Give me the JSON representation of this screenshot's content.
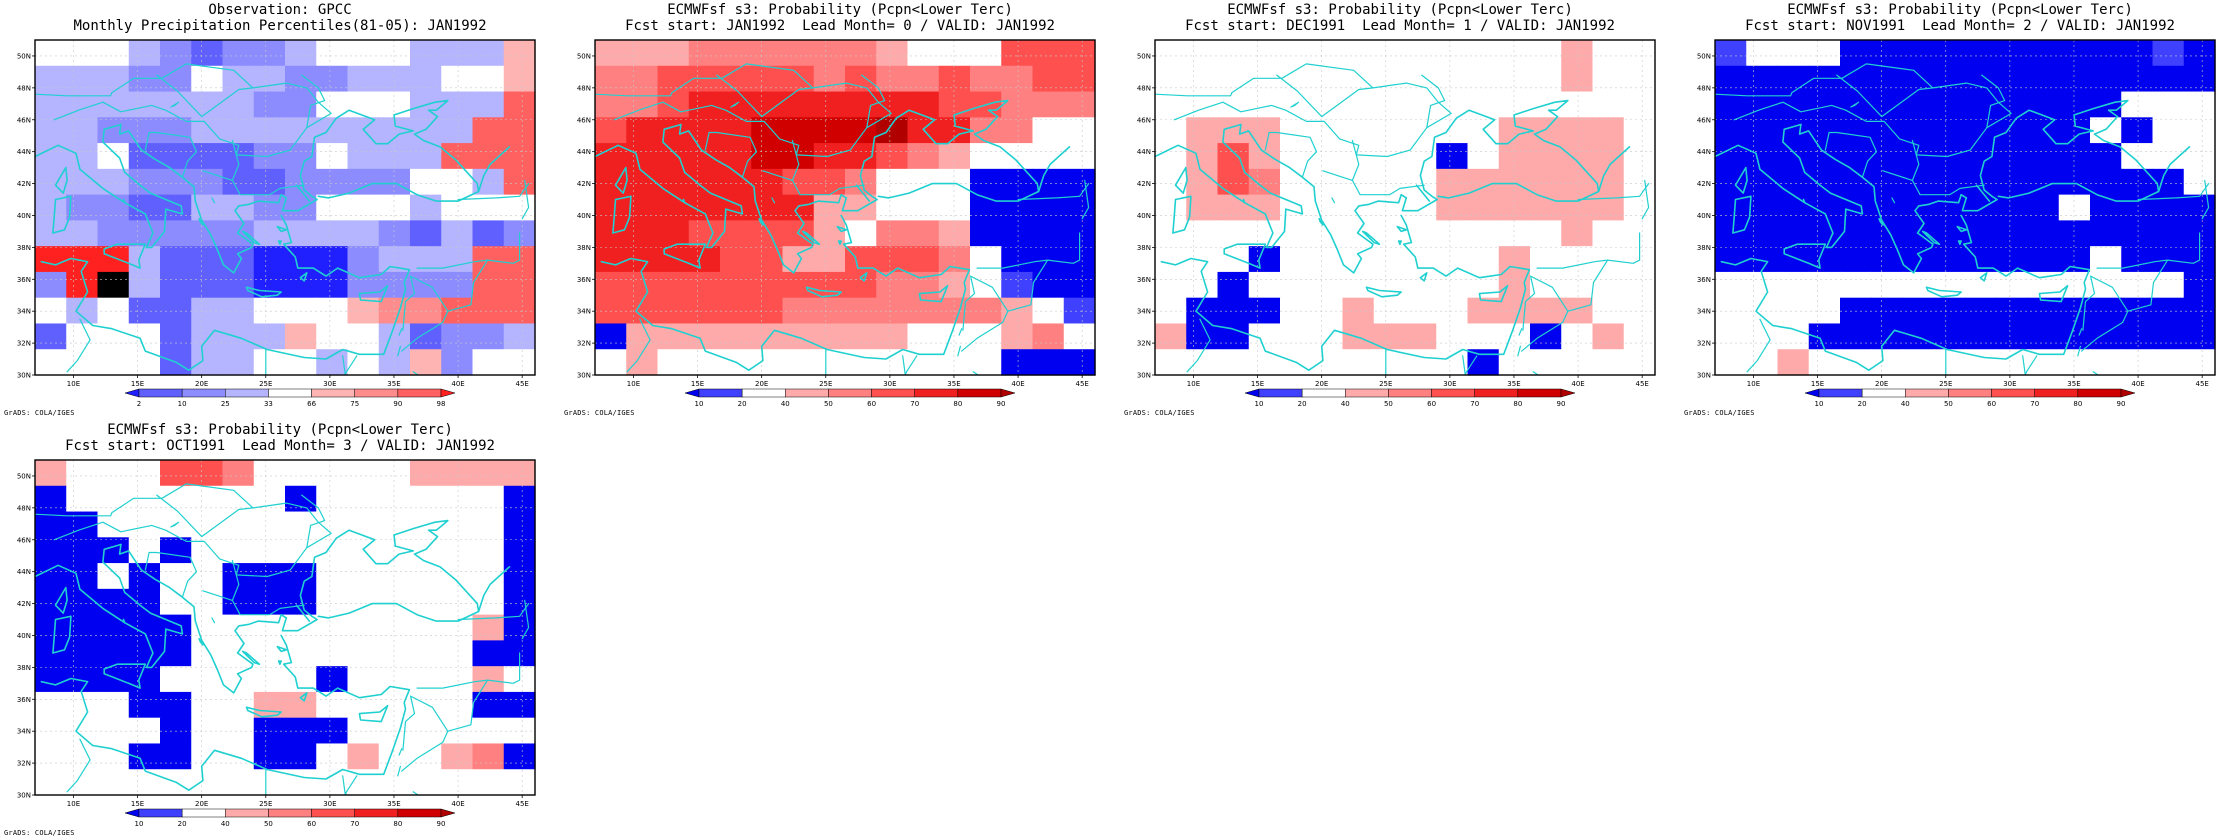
{
  "palette": {
    "obs": [
      "#2020ff",
      "#6060ff",
      "#8c8cff",
      "#b4b4ff",
      "#ffffff",
      "#ffb4b4",
      "#ff8c8c",
      "#ff6060",
      "#ff2020"
    ],
    "obs_labels": [
      "2",
      "10",
      "25",
      "33",
      "66",
      "75",
      "90",
      "98"
    ],
    "prob": [
      "#0000f0",
      "#4040ff",
      "#ffffff",
      "#ffaaaa",
      "#ff8080",
      "#ff5050",
      "#f02020",
      "#d00000",
      "#b00000"
    ],
    "prob_labels": [
      "10",
      "20",
      "40",
      "50",
      "60",
      "70",
      "80",
      "90"
    ],
    "coast": "#20d0d0"
  },
  "axes": {
    "lon_labels": [
      "10E",
      "15E",
      "20E",
      "25E",
      "30E",
      "35E",
      "40E",
      "45E"
    ],
    "lat_labels": [
      "30N",
      "32N",
      "34N",
      "36N",
      "38N",
      "40N",
      "42N",
      "44N",
      "46N",
      "48N",
      "50N"
    ]
  },
  "credit": "GrADS: COLA/IGES",
  "panels": [
    {
      "title1": "Observation: GPCC",
      "title2": "Monthly Precipitation Percentiles(81-05): JAN1992",
      "scale": "obs",
      "grid": [
        "4443212234443335",
        "3332243322333445",
        "3333333224443337",
        "3322233333333377",
        "3341111224333777",
        "3332221122224437",
        "3221133224443444",
        "3322222333321312",
        "8883111000233377",
        "2893111000222277",
        "4341133444566777",
        "1444133354431223",
        "4444133443435244"
      ]
    },
    {
      "title1": "ECMWFsf s3: Probability (Pcpn<Lower Terc)",
      "title2": "Fcst start: JAN1992  Lead Month= 0 / VALID: JAN1992",
      "scale": "prob",
      "grid": [
        "3334444443222555",
        "4455555454454455",
        "4456666666655444",
        "5666677778664422",
        "6666677665432222",
        "6666665542220000",
        "6666666332220000",
        "6665555324430000",
        "6666553355542000",
        "5555555554432100",
        "5555554444444321",
        "0333333333222342",
        "2322222222222000"
      ]
    },
    {
      "title1": "ECMWFsf s3: Probability (Pcpn<Lower Terc)",
      "title2": "Fcst start: DEC1991  Lead Month= 1 / VALID: JAN1992",
      "scale": "prob",
      "grid": [
        "2222222222222322",
        "2222222222222322",
        "2222222222222222",
        "2333222222233332",
        "2353222220233332",
        "2354222223333332",
        "2333222223333332",
        "2222222222222322",
        "2220222222232222",
        "2202222222232222",
        "2000223222333322",
        "3002223332220232",
        "2222222222022222"
      ]
    },
    {
      "title1": "ECMWFsf s3: Probability (Pcpn<Lower Terc)",
      "title2": "Fcst start: NOV1991  Lead Month= 2 / VALID: JAN1992",
      "scale": "prob",
      "grid": [
        "1222000000000010",
        "0000000000000000",
        "0000000000000222",
        "0000000000002022",
        "0000000000000222",
        "0000000000000002",
        "0000000000020000",
        "0000000000000000",
        "0000000000002000",
        "2222222222222220",
        "2222000000000000",
        "2220000000000000",
        "2232222222222222"
      ]
    },
    {
      "title1": "ECMWFsf s3: Probability (Pcpn<Lower Terc)",
      "title2": "Fcst start: OCT1991  Lead Month= 3 / VALID: JAN1992",
      "scale": "prob",
      "grid": [
        "3222554222223333",
        "0222222202222220",
        "0022222222222220",
        "0002022222222220",
        "0020220002222220",
        "0000220002222220",
        "0000022222222230",
        "0000022222222200",
        "0000222220222232",
        "2220022332222200",
        "2222022000222222",
        "2220022002322340",
        "2222222222222222"
      ]
    }
  ]
}
